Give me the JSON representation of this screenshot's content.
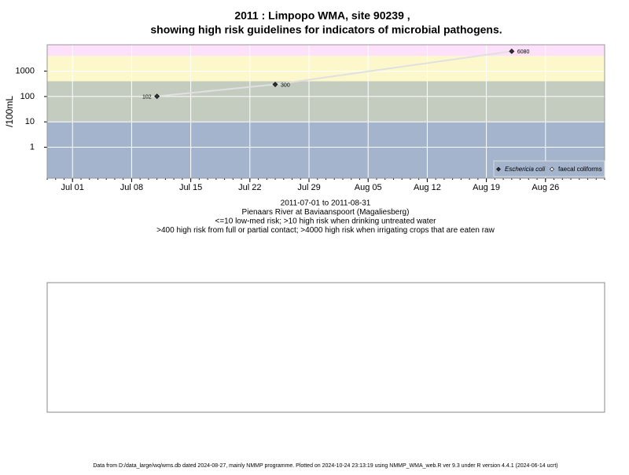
{
  "chart_data": {
    "type": "scatter-line",
    "title": "2011 : Limpopo WMA, site 90239 ,",
    "subtitle": "showing high risk guidelines for indicators of microbial pathogens.",
    "ylabel": "/100mL",
    "notes": [
      "2011-07-01 to 2011-08-31",
      "Pienaars River at Baviaanspoort (Magaliesberg)",
      "<=10 low-med risk; >10 high risk when drinking untreated water",
      ">400 high risk from full or partial contact; >4000 high risk when irrigating crops that are eaten raw"
    ],
    "footer": "Data from D:/data_large/wq/wms.db dated 2024-08-27, mainly NMMP programme. Plotted on 2024-10-24 23:13:19 using NMMP_WMA_web.R ver 9.3 under R version 4.4.1 (2024-06-14 ucrt)",
    "x": [
      "2011-07-11",
      "2011-07-25",
      "2011-08-22"
    ],
    "series": [
      {
        "name": "Eschericia coli",
        "color": "#333333",
        "line_color": "#e0e0e0",
        "values": [
          102,
          300,
          6080
        ]
      },
      {
        "name": "faecal coliforms",
        "color": "#ffffff",
        "values": [
          null,
          null,
          null
        ]
      }
    ],
    "xlim": [
      "2011-06-28",
      "2011-09-02"
    ],
    "xticks": [
      {
        "value": "2011-07-01",
        "label": "Jul 01"
      },
      {
        "value": "2011-07-08",
        "label": "Jul 08"
      },
      {
        "value": "2011-07-15",
        "label": "Jul 15"
      },
      {
        "value": "2011-07-22",
        "label": "Jul 22"
      },
      {
        "value": "2011-07-29",
        "label": "Jul 29"
      },
      {
        "value": "2011-08-05",
        "label": "Aug 05"
      },
      {
        "value": "2011-08-12",
        "label": "Aug 12"
      },
      {
        "value": "2011-08-19",
        "label": "Aug 19"
      },
      {
        "value": "2011-08-26",
        "label": "Aug 26"
      }
    ],
    "ylim": [
      0.06,
      11000
    ],
    "log_y": true,
    "yticks": [
      1,
      10,
      100,
      1000
    ],
    "thresholds": [
      10,
      400,
      4000
    ],
    "band_colors": [
      "#a3b4cc",
      "#c4ccc0",
      "#fdf8cc",
      "#fde0fa"
    ],
    "grid": true,
    "legend": "bottom-right"
  }
}
